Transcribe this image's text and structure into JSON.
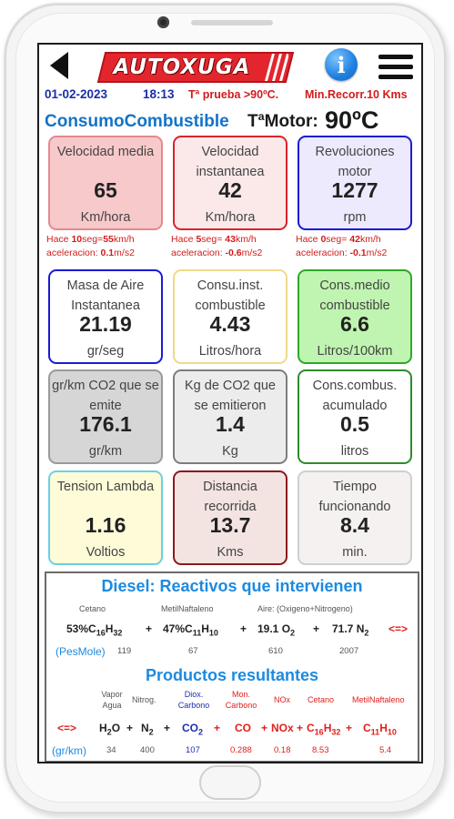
{
  "header": {
    "logo_text": "AUTOXUGA",
    "date": "01-02-2023",
    "time": "18:13",
    "temp_test": "Tª prueba >90ºC.",
    "min_route": "Min.Recorr.10 Kms",
    "title": "ConsumoCombustible",
    "motor_label": "TªMotor:",
    "motor_value": "90ºC"
  },
  "cards": [
    {
      "label": "Velocidad media",
      "value": "65",
      "unit": "Km/hora"
    },
    {
      "label": "Velocidad instantanea",
      "value": "42",
      "unit": "Km/hora"
    },
    {
      "label": "Revoluciones motor",
      "value": "1277",
      "unit": "rpm"
    },
    {
      "label": "Masa de Aire Instantanea",
      "value": "21.19",
      "unit": "gr/seg"
    },
    {
      "label": "Consu.inst. combustible",
      "value": "4.43",
      "unit": "Litros/hora"
    },
    {
      "label": "Cons.medio combustible",
      "value": "6.6",
      "unit": "Litros/100km"
    },
    {
      "label": "gr/km CO2 que se emite",
      "value": "176.1",
      "unit": "gr/km"
    },
    {
      "label": "Kg de CO2 que se emitieron",
      "value": "1.4",
      "unit": "Kg"
    },
    {
      "label": "Cons.combus. acumulado",
      "value": "0.5",
      "unit": "litros"
    },
    {
      "label": "Tension Lambda",
      "value": "1.16",
      "unit": "Voltios"
    },
    {
      "label": "Distancia recorrida",
      "value": "13.7",
      "unit": "Kms"
    },
    {
      "label": "Tiempo funcionando",
      "value": "8.4",
      "unit": "min."
    }
  ],
  "accel": [
    {
      "ago": "Hace ",
      "secs": "10",
      "seg": "seg=",
      "speed": "55",
      "kmh": "km/h",
      "acc_label": "aceleracion: ",
      "acc": "0.1",
      "unit": "m/s2"
    },
    {
      "ago": "Hace ",
      "secs": "5",
      "seg": "seg= ",
      "speed": "43",
      "kmh": "km/h",
      "acc_label": "aceleracion: ",
      "acc": "-0.6",
      "unit": "m/s2"
    },
    {
      "ago": "Hace ",
      "secs": "0",
      "seg": "seg= ",
      "speed": "42",
      "kmh": "km/h",
      "acc_label": "aceleracion: ",
      "acc": "-0.1",
      "unit": "m/s2"
    }
  ],
  "reactives": {
    "title": "Diesel: Reactivos que intervienen",
    "labels": [
      "Cetano",
      "MetilNaftaleno",
      "Aire: (Oxigeno+Nitrogeno)"
    ],
    "coef1": "53%",
    "coef2": "47%",
    "coef3": "19.1",
    "coef4": "71.7",
    "plus": "+",
    "arrow": "<=>",
    "pesmole": "(PesMole)",
    "weights": [
      "119",
      "67",
      "610",
      "2007"
    ]
  },
  "products": {
    "title": "Productos resultantes",
    "labels": [
      "Vapor Agua",
      "Nitrog.",
      "Diox. Carbono",
      "Mon. Carbono",
      "NOx",
      "Cetano",
      "MetilNaftaleno"
    ],
    "arrow": "<=>",
    "plus": "+",
    "unit": "(gr/km)",
    "values": [
      "34",
      "400",
      "107",
      "0.288",
      "0.18",
      "8.53",
      "5.4"
    ]
  }
}
